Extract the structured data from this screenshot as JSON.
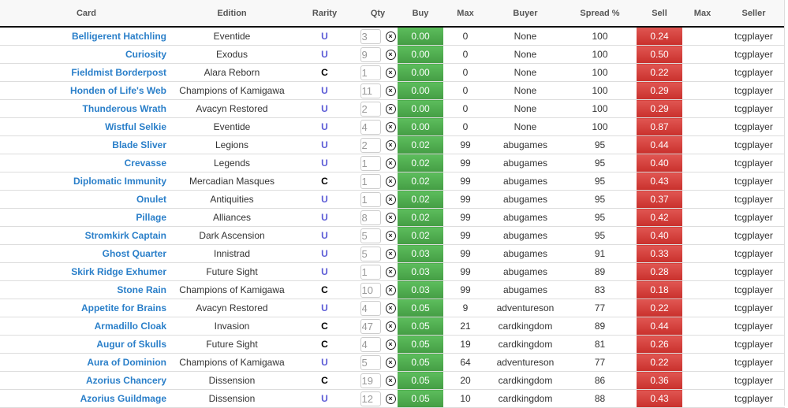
{
  "headers": [
    "Card",
    "Edition",
    "Rarity",
    "Qty",
    "Buy",
    "Max",
    "Buyer",
    "Spread %",
    "Sell",
    "Max",
    "Seller"
  ],
  "colors": {
    "buy": "#4cae4c",
    "sell": "#d43f3a",
    "card_link": "#2a7fc9",
    "uncommon": "#5b5bd6"
  },
  "rows": [
    {
      "card": "Belligerent Hatchling",
      "edition": "Eventide",
      "rarity": "U",
      "qty": "3",
      "buy": "0.00",
      "buy_max": "0",
      "buyer": "None",
      "spread": "100",
      "sell": "0.24",
      "sell_max": "",
      "seller": "tcgplayer"
    },
    {
      "card": "Curiosity",
      "edition": "Exodus",
      "rarity": "U",
      "qty": "9",
      "buy": "0.00",
      "buy_max": "0",
      "buyer": "None",
      "spread": "100",
      "sell": "0.50",
      "sell_max": "",
      "seller": "tcgplayer"
    },
    {
      "card": "Fieldmist Borderpost",
      "edition": "Alara Reborn",
      "rarity": "C",
      "qty": "1",
      "buy": "0.00",
      "buy_max": "0",
      "buyer": "None",
      "spread": "100",
      "sell": "0.22",
      "sell_max": "",
      "seller": "tcgplayer"
    },
    {
      "card": "Honden of Life's Web",
      "edition": "Champions of Kamigawa",
      "rarity": "U",
      "qty": "11",
      "buy": "0.00",
      "buy_max": "0",
      "buyer": "None",
      "spread": "100",
      "sell": "0.29",
      "sell_max": "",
      "seller": "tcgplayer"
    },
    {
      "card": "Thunderous Wrath",
      "edition": "Avacyn Restored",
      "rarity": "U",
      "qty": "2",
      "buy": "0.00",
      "buy_max": "0",
      "buyer": "None",
      "spread": "100",
      "sell": "0.29",
      "sell_max": "",
      "seller": "tcgplayer"
    },
    {
      "card": "Wistful Selkie",
      "edition": "Eventide",
      "rarity": "U",
      "qty": "4",
      "buy": "0.00",
      "buy_max": "0",
      "buyer": "None",
      "spread": "100",
      "sell": "0.87",
      "sell_max": "",
      "seller": "tcgplayer"
    },
    {
      "card": "Blade Sliver",
      "edition": "Legions",
      "rarity": "U",
      "qty": "2",
      "buy": "0.02",
      "buy_max": "99",
      "buyer": "abugames",
      "spread": "95",
      "sell": "0.44",
      "sell_max": "",
      "seller": "tcgplayer"
    },
    {
      "card": "Crevasse",
      "edition": "Legends",
      "rarity": "U",
      "qty": "1",
      "buy": "0.02",
      "buy_max": "99",
      "buyer": "abugames",
      "spread": "95",
      "sell": "0.40",
      "sell_max": "",
      "seller": "tcgplayer"
    },
    {
      "card": "Diplomatic Immunity",
      "edition": "Mercadian Masques",
      "rarity": "C",
      "qty": "1",
      "buy": "0.02",
      "buy_max": "99",
      "buyer": "abugames",
      "spread": "95",
      "sell": "0.43",
      "sell_max": "",
      "seller": "tcgplayer"
    },
    {
      "card": "Onulet",
      "edition": "Antiquities",
      "rarity": "U",
      "qty": "1",
      "buy": "0.02",
      "buy_max": "99",
      "buyer": "abugames",
      "spread": "95",
      "sell": "0.37",
      "sell_max": "",
      "seller": "tcgplayer"
    },
    {
      "card": "Pillage",
      "edition": "Alliances",
      "rarity": "U",
      "qty": "8",
      "buy": "0.02",
      "buy_max": "99",
      "buyer": "abugames",
      "spread": "95",
      "sell": "0.42",
      "sell_max": "",
      "seller": "tcgplayer"
    },
    {
      "card": "Stromkirk Captain",
      "edition": "Dark Ascension",
      "rarity": "U",
      "qty": "5",
      "buy": "0.02",
      "buy_max": "99",
      "buyer": "abugames",
      "spread": "95",
      "sell": "0.40",
      "sell_max": "",
      "seller": "tcgplayer"
    },
    {
      "card": "Ghost Quarter",
      "edition": "Innistrad",
      "rarity": "U",
      "qty": "5",
      "buy": "0.03",
      "buy_max": "99",
      "buyer": "abugames",
      "spread": "91",
      "sell": "0.33",
      "sell_max": "",
      "seller": "tcgplayer"
    },
    {
      "card": "Skirk Ridge Exhumer",
      "edition": "Future Sight",
      "rarity": "U",
      "qty": "1",
      "buy": "0.03",
      "buy_max": "99",
      "buyer": "abugames",
      "spread": "89",
      "sell": "0.28",
      "sell_max": "",
      "seller": "tcgplayer"
    },
    {
      "card": "Stone Rain",
      "edition": "Champions of Kamigawa",
      "rarity": "C",
      "qty": "10",
      "buy": "0.03",
      "buy_max": "99",
      "buyer": "abugames",
      "spread": "83",
      "sell": "0.18",
      "sell_max": "",
      "seller": "tcgplayer"
    },
    {
      "card": "Appetite for Brains",
      "edition": "Avacyn Restored",
      "rarity": "U",
      "qty": "4",
      "buy": "0.05",
      "buy_max": "9",
      "buyer": "adventureson",
      "spread": "77",
      "sell": "0.22",
      "sell_max": "",
      "seller": "tcgplayer"
    },
    {
      "card": "Armadillo Cloak",
      "edition": "Invasion",
      "rarity": "C",
      "qty": "47",
      "buy": "0.05",
      "buy_max": "21",
      "buyer": "cardkingdom",
      "spread": "89",
      "sell": "0.44",
      "sell_max": "",
      "seller": "tcgplayer"
    },
    {
      "card": "Augur of Skulls",
      "edition": "Future Sight",
      "rarity": "C",
      "qty": "4",
      "buy": "0.05",
      "buy_max": "19",
      "buyer": "cardkingdom",
      "spread": "81",
      "sell": "0.26",
      "sell_max": "",
      "seller": "tcgplayer"
    },
    {
      "card": "Aura of Dominion",
      "edition": "Champions of Kamigawa",
      "rarity": "U",
      "qty": "5",
      "buy": "0.05",
      "buy_max": "64",
      "buyer": "adventureson",
      "spread": "77",
      "sell": "0.22",
      "sell_max": "",
      "seller": "tcgplayer"
    },
    {
      "card": "Azorius Chancery",
      "edition": "Dissension",
      "rarity": "C",
      "qty": "19",
      "buy": "0.05",
      "buy_max": "20",
      "buyer": "cardkingdom",
      "spread": "86",
      "sell": "0.36",
      "sell_max": "",
      "seller": "tcgplayer"
    },
    {
      "card": "Azorius Guildmage",
      "edition": "Dissension",
      "rarity": "U",
      "qty": "12",
      "buy": "0.05",
      "buy_max": "10",
      "buyer": "cardkingdom",
      "spread": "88",
      "sell": "0.43",
      "sell_max": "",
      "seller": "tcgplayer"
    }
  ]
}
